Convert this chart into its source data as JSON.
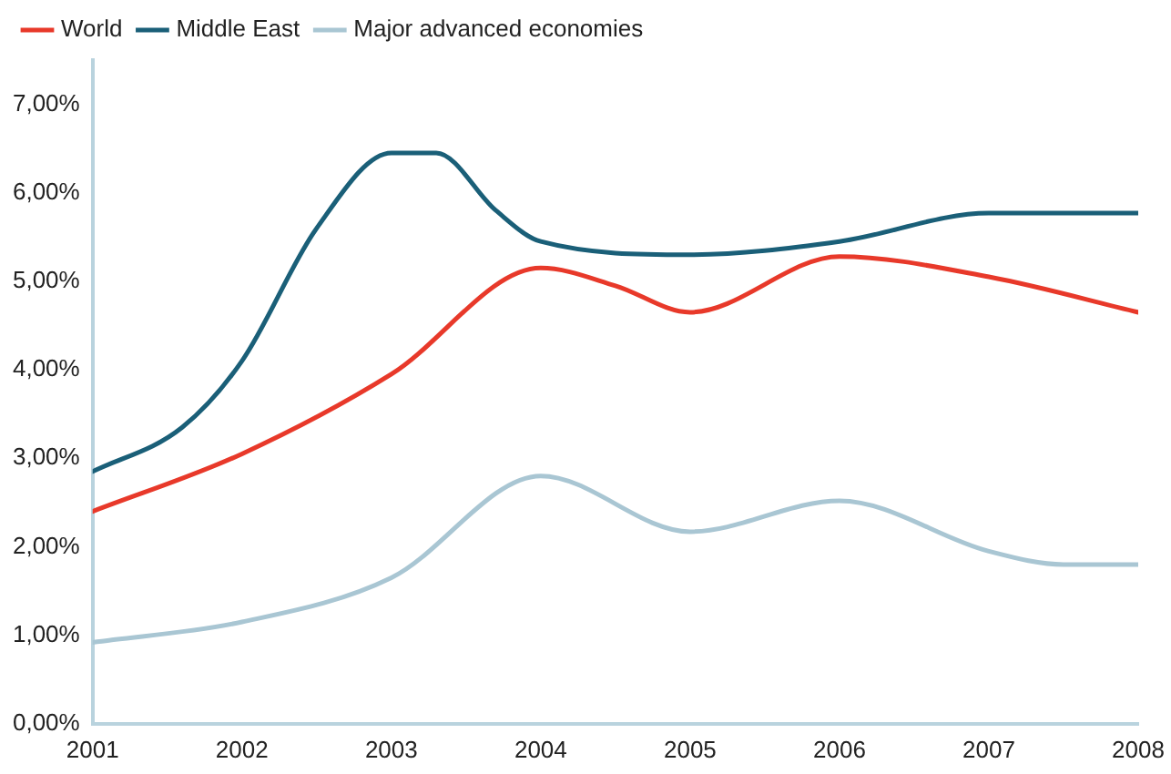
{
  "chart_data": {
    "type": "line",
    "legend": "top left",
    "grid": false,
    "marker": "none",
    "line_style": "solid",
    "xlim": [
      2001,
      2008
    ],
    "xticks": [
      2001,
      2002,
      2003,
      2004,
      2005,
      2006,
      2007,
      2008
    ],
    "ylim": [
      0,
      7.5
    ],
    "yticks": [
      {
        "value": 0,
        "label": "0,00%"
      },
      {
        "value": 1,
        "label": "1,00%"
      },
      {
        "value": 2,
        "label": "2,00%"
      },
      {
        "value": 3,
        "label": "3,00%"
      },
      {
        "value": 4,
        "label": "4,00%"
      },
      {
        "value": 5,
        "label": "5,00%"
      },
      {
        "value": 6,
        "label": "6,00%"
      },
      {
        "value": 7,
        "label": "7,00%"
      }
    ],
    "series": [
      {
        "name": "World",
        "color": "#e8392a",
        "x": [
          2001,
          2002,
          2003,
          2004,
          2004.5,
          2005,
          2006,
          2007,
          2008
        ],
        "values": [
          2.4,
          3.05,
          3.95,
          5.15,
          4.95,
          4.65,
          5.28,
          5.05,
          4.65
        ]
      },
      {
        "name": "Middle East",
        "color": "#1a5f78",
        "x": [
          2001,
          2001.6,
          2002,
          2002.5,
          2003,
          2003.3,
          2003.7,
          2004,
          2005,
          2006,
          2007,
          2008
        ],
        "values": [
          2.85,
          3.35,
          4.1,
          5.6,
          6.45,
          6.45,
          5.8,
          5.45,
          5.3,
          5.45,
          5.77,
          5.77
        ]
      },
      {
        "name": "Major advanced economies",
        "color": "#a9c6d3",
        "x": [
          2001,
          2002,
          2003,
          2004,
          2005,
          2006,
          2007,
          2007.5,
          2008
        ],
        "values": [
          0.92,
          1.15,
          1.65,
          2.8,
          2.17,
          2.52,
          1.95,
          1.8,
          1.8
        ]
      }
    ]
  }
}
